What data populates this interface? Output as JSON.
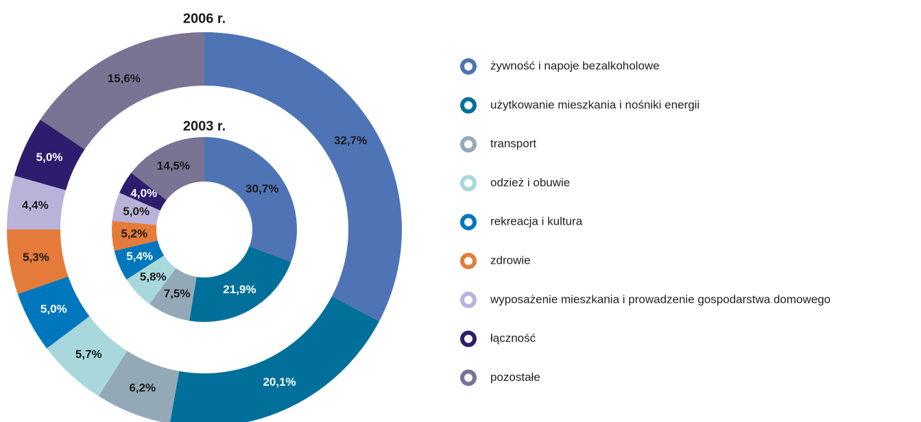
{
  "chart_data": {
    "type": "donut",
    "categories": [
      "żywność i napoje bezalkoholowe",
      "użytkowanie mieszkania i nośniki energii",
      "transport",
      "odzież i obuwie",
      "rekreacja i kultura",
      "zdrowie",
      "wyposażenie mieszkania i prowadzenie gospodarstwa domowego",
      "łączność",
      "pozostałe"
    ],
    "colors": [
      "#4e74b5",
      "#00709a",
      "#94a9b8",
      "#a9d8dc",
      "#0077bd",
      "#e57b3a",
      "#b9b3d9",
      "#2e1c6e",
      "#7a7394"
    ],
    "series": [
      {
        "name": "2006 r.",
        "values": [
          32.7,
          20.1,
          6.2,
          5.7,
          5.0,
          5.3,
          4.4,
          5.0,
          15.6
        ],
        "value_labels": [
          "32,7%",
          "20,1%",
          "6,2%",
          "5,7%",
          "5,0%",
          "5,3%",
          "4,4%",
          "5,0%",
          "15,6%"
        ]
      },
      {
        "name": "2003 r.",
        "values": [
          30.7,
          21.9,
          7.5,
          5.8,
          5.4,
          5.2,
          5.0,
          4.0,
          14.5
        ],
        "value_labels": [
          "30,7%",
          "21,9%",
          "7,5%",
          "5,8%",
          "5,4%",
          "5,2%",
          "5,0%",
          "4,0%",
          "14,5%"
        ]
      }
    ]
  }
}
